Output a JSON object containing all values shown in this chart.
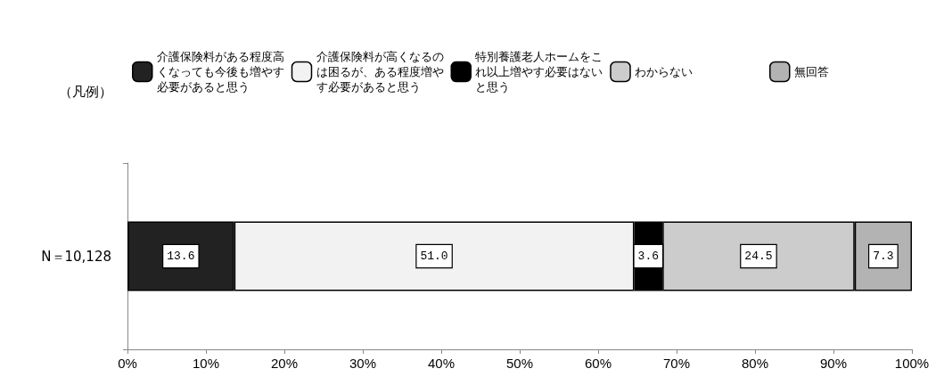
{
  "chart_data": {
    "type": "bar",
    "orientation": "horizontal",
    "stacked": true,
    "legend_title": "（凡例）",
    "legend": "top",
    "grid": false,
    "categories": [
      "N＝10,128"
    ],
    "series": [
      {
        "name": "介護保険料がある程度高くなっても今後も増やす必要があると思う",
        "color": "#222222",
        "values": [
          13.6
        ],
        "value_labels": [
          "13.6"
        ]
      },
      {
        "name": "介護保険料が高くなるのは困るが、ある程度増やす必要があると思う",
        "color": "#f2f2f2",
        "values": [
          51.0
        ],
        "value_labels": [
          "51.0"
        ]
      },
      {
        "name": "特別養護老人ホームをこれ以上増やす必要はないと思う",
        "color": "#000000",
        "values": [
          3.6
        ],
        "value_labels": [
          "3.6"
        ]
      },
      {
        "name": "わからない",
        "color": "#cccccc",
        "values": [
          24.5
        ],
        "value_labels": [
          "24.5"
        ]
      },
      {
        "name": "無回答",
        "color": "#b3b3b3",
        "values": [
          7.3
        ],
        "value_labels": [
          "7.3"
        ]
      }
    ],
    "xlim": [
      0,
      100
    ],
    "xticks": [
      {
        "value": 0,
        "label": "0%"
      },
      {
        "value": 10,
        "label": "10%"
      },
      {
        "value": 20,
        "label": "20%"
      },
      {
        "value": 30,
        "label": "30%"
      },
      {
        "value": 40,
        "label": "40%"
      },
      {
        "value": 50,
        "label": "50%"
      },
      {
        "value": 60,
        "label": "60%"
      },
      {
        "value": 70,
        "label": "70%"
      },
      {
        "value": 80,
        "label": "80%"
      },
      {
        "value": 90,
        "label": "90%"
      },
      {
        "value": 100,
        "label": "100%"
      }
    ]
  }
}
